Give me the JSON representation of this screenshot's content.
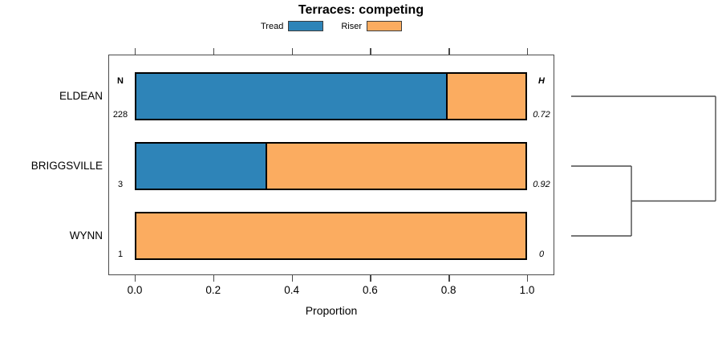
{
  "chart_data": {
    "type": "bar",
    "variant": "horizontal-stacked-proportion-with-dendrogram",
    "title": "Terraces: competing",
    "xlabel": "Proportion",
    "xlim": [
      0,
      1
    ],
    "x_tick_values": [
      0,
      0.2,
      0.4,
      0.6,
      0.8,
      1.0
    ],
    "x_tick_labels": [
      "0.0",
      "0.2",
      "0.4",
      "0.6",
      "0.8",
      "1.0"
    ],
    "grid": false,
    "legend_position": "top-center",
    "categories": [
      "ELDEAN",
      "BRIGGSVILLE",
      "WYNN"
    ],
    "series": [
      {
        "name": "Tread",
        "color": "#2E84B8",
        "values": [
          0.8,
          0.3333,
          0
        ]
      },
      {
        "name": "Riser",
        "color": "#FBAC60",
        "values": [
          0.2,
          0.6667,
          1
        ]
      }
    ],
    "left_annotation": {
      "header": "N",
      "values": [
        "228",
        "3",
        "1"
      ]
    },
    "right_annotation": {
      "header": "H",
      "values": [
        "0.72",
        "0.92",
        "0"
      ]
    },
    "legend": {
      "entries": [
        {
          "label": "Tread",
          "color": "#2E84B8"
        },
        {
          "label": "Riser",
          "color": "#FBAC60"
        }
      ]
    },
    "dendrogram": {
      "leaves": [
        "ELDEAN",
        "BRIGGSVILLE",
        "WYNN"
      ],
      "merges": [
        {
          "clusters": [
            1,
            2
          ],
          "position": 0.417
        },
        {
          "clusters": [
            0,
            3
          ],
          "position": 1.0
        }
      ]
    },
    "colors": {
      "axis": "#4a4a4a",
      "bar_border": "#000000",
      "dendrogram_line": "#4a4a4a",
      "text": "#000000",
      "background": "#ffffff"
    }
  }
}
